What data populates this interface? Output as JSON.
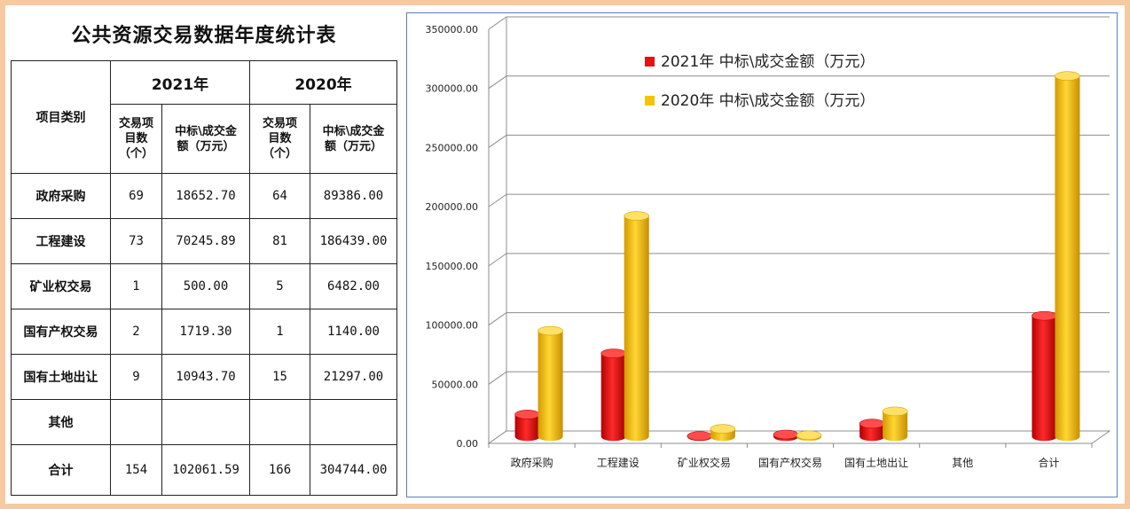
{
  "table": {
    "title": "公共资源交易数据年度统计表",
    "category_header": "项目类别",
    "years": [
      "2021年",
      "2020年"
    ],
    "sub_headers": {
      "count_lines": [
        "交易项",
        "目数",
        "（个）"
      ],
      "amount_lines": [
        "中标\\成交金",
        "额（万元）"
      ]
    },
    "rows": [
      {
        "name": "政府采购",
        "c2021": "69",
        "a2021": "18652.70",
        "c2020": "64",
        "a2020": "89386.00"
      },
      {
        "name": "工程建设",
        "c2021": "73",
        "a2021": "70245.89",
        "c2020": "81",
        "a2020": "186439.00"
      },
      {
        "name": "矿业权交易",
        "c2021": "1",
        "a2021": "500.00",
        "c2020": "5",
        "a2020": "6482.00"
      },
      {
        "name": "国有产权交易",
        "c2021": "2",
        "a2021": "1719.30",
        "c2020": "1",
        "a2020": "1140.00"
      },
      {
        "name": "国有土地出让",
        "c2021": "9",
        "a2021": "10943.70",
        "c2020": "15",
        "a2020": "21297.00"
      },
      {
        "name": "其他",
        "c2021": "",
        "a2021": "",
        "c2020": "",
        "a2020": ""
      },
      {
        "name": "合计",
        "c2021": "154",
        "a2021": "102061.59",
        "c2020": "166",
        "a2020": "304744.00"
      }
    ]
  },
  "chart_data": {
    "type": "bar",
    "categories": [
      "政府采购",
      "工程建设",
      "矿业权交易",
      "国有产权交易",
      "国有土地出让",
      "其他",
      "合计"
    ],
    "series": [
      {
        "name": "2021年 中标\\成交金额（万元）",
        "color": "#e81010",
        "values": [
          18652.7,
          70245.89,
          500.0,
          1719.3,
          10943.7,
          null,
          102061.59
        ]
      },
      {
        "name": "2020年 中标\\成交金额（万元）",
        "color": "#f5c400",
        "values": [
          89386.0,
          186439.0,
          6482.0,
          1140.0,
          21297.0,
          null,
          304744.0
        ]
      }
    ],
    "ylim": [
      0,
      350000
    ],
    "yticks": [
      "0.00",
      "50000.00",
      "100000.00",
      "150000.00",
      "200000.00",
      "250000.00",
      "300000.00",
      "350000.00"
    ],
    "grid": true,
    "legend_position": "top-center",
    "style": "3d-cylinder"
  }
}
